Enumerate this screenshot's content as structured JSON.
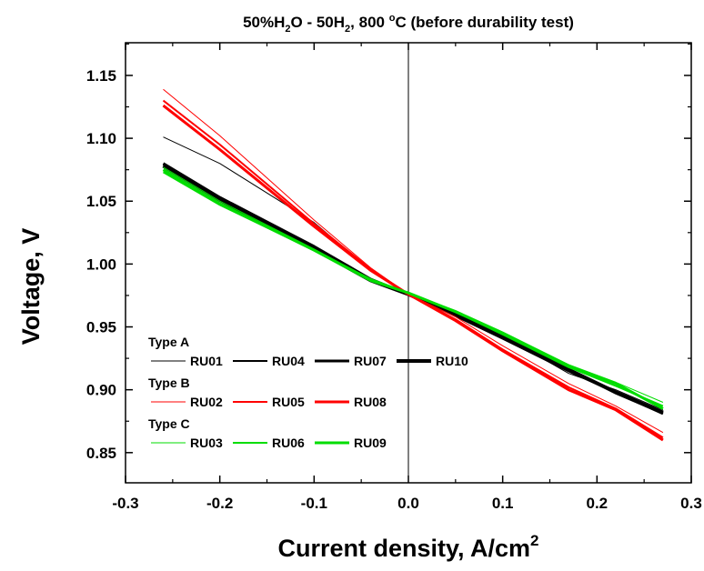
{
  "chart_data": {
    "type": "line",
    "title_parts": {
      "a": "50%H",
      "a_sub": "2",
      "b": "O - 50H",
      "b_sub": "2",
      "c": ", 800 ",
      "c_sup": "o",
      "d": "C (before durability test)"
    },
    "xlabel_main": "Current density, A/cm",
    "xlabel_sup": "2",
    "ylabel": "Voltage, V",
    "xlim": [
      -0.3,
      0.3
    ],
    "ylim": [
      0.826,
      1.176
    ],
    "x_ticks": [
      -0.3,
      -0.2,
      -0.1,
      0.0,
      0.1,
      0.2,
      0.3
    ],
    "x_tick_labels": [
      "-0.3",
      "-0.2",
      "-0.1",
      "0.0",
      "0.1",
      "0.2",
      "0.3"
    ],
    "y_ticks": [
      0.85,
      0.9,
      0.95,
      1.0,
      1.05,
      1.1,
      1.15
    ],
    "y_tick_labels": [
      "0.85",
      "0.90",
      "0.95",
      "1.00",
      "1.05",
      "1.10",
      "1.15"
    ],
    "zero_line_x": 0.0,
    "grid": false,
    "legend_position": "bottom-left",
    "legend_groups": [
      {
        "label": "Type A",
        "items": [
          "RU01",
          "RU04",
          "RU07",
          "RU10"
        ]
      },
      {
        "label": "Type B",
        "items": [
          "RU02",
          "RU05",
          "RU08"
        ]
      },
      {
        "label": "Type C",
        "items": [
          "RU03",
          "RU06",
          "RU09"
        ]
      }
    ],
    "series": [
      {
        "name": "RU01",
        "group": "Type A",
        "color": "#000000",
        "width": 1,
        "x": [
          -0.26,
          -0.2,
          -0.1,
          -0.04,
          0.0,
          0.05,
          0.1,
          0.17,
          0.22,
          0.27
        ],
        "y": [
          1.101,
          1.08,
          1.033,
          0.995,
          0.976,
          0.961,
          0.943,
          0.913,
          0.9,
          0.884
        ]
      },
      {
        "name": "RU04",
        "group": "Type A",
        "color": "#000000",
        "width": 2,
        "x": [
          -0.26,
          -0.2,
          -0.1,
          -0.04,
          0.0,
          0.05,
          0.1,
          0.17,
          0.22,
          0.27
        ],
        "y": [
          1.079,
          1.052,
          1.013,
          0.988,
          0.976,
          0.96,
          0.942,
          0.916,
          0.897,
          0.881
        ]
      },
      {
        "name": "RU07",
        "group": "Type A",
        "color": "#000000",
        "width": 3,
        "x": [
          -0.26,
          -0.2,
          -0.1,
          -0.04,
          0.0,
          0.05,
          0.1,
          0.17,
          0.22,
          0.27
        ],
        "y": [
          1.08,
          1.053,
          1.014,
          0.988,
          0.976,
          0.959,
          0.941,
          0.915,
          0.898,
          0.881
        ]
      },
      {
        "name": "RU10",
        "group": "Type A",
        "color": "#000000",
        "width": 4,
        "x": [
          -0.26,
          -0.2,
          -0.1,
          -0.04,
          0.0,
          0.05,
          0.1,
          0.17,
          0.22,
          0.27
        ],
        "y": [
          1.078,
          1.051,
          1.012,
          0.987,
          0.976,
          0.96,
          0.942,
          0.916,
          0.898,
          0.882
        ]
      },
      {
        "name": "RU02",
        "group": "Type B",
        "color": "#ff0000",
        "width": 1,
        "x": [
          -0.26,
          -0.2,
          -0.1,
          -0.04,
          0.0,
          0.05,
          0.1,
          0.17,
          0.22,
          0.27
        ],
        "y": [
          1.139,
          1.102,
          1.035,
          0.997,
          0.976,
          0.958,
          0.935,
          0.905,
          0.887,
          0.866
        ]
      },
      {
        "name": "RU05",
        "group": "Type B",
        "color": "#ff0000",
        "width": 2,
        "x": [
          -0.26,
          -0.2,
          -0.1,
          -0.04,
          0.0,
          0.05,
          0.1,
          0.17,
          0.22,
          0.27
        ],
        "y": [
          1.13,
          1.095,
          1.032,
          0.996,
          0.976,
          0.956,
          0.932,
          0.902,
          0.885,
          0.862
        ]
      },
      {
        "name": "RU08",
        "group": "Type B",
        "color": "#ff0000",
        "width": 3,
        "x": [
          -0.26,
          -0.2,
          -0.1,
          -0.04,
          0.0,
          0.05,
          0.1,
          0.17,
          0.22,
          0.27
        ],
        "y": [
          1.126,
          1.091,
          1.03,
          0.995,
          0.976,
          0.955,
          0.931,
          0.9,
          0.884,
          0.86
        ]
      },
      {
        "name": "RU03",
        "group": "Type C",
        "color": "#00dd00",
        "width": 1,
        "x": [
          -0.26,
          -0.2,
          -0.1,
          -0.04,
          0.0,
          0.05,
          0.1,
          0.17,
          0.22,
          0.27
        ],
        "y": [
          1.077,
          1.05,
          1.012,
          0.988,
          0.977,
          0.963,
          0.946,
          0.92,
          0.906,
          0.89
        ]
      },
      {
        "name": "RU06",
        "group": "Type C",
        "color": "#00dd00",
        "width": 2,
        "x": [
          -0.26,
          -0.2,
          -0.1,
          -0.04,
          0.0,
          0.05,
          0.1,
          0.17,
          0.22,
          0.27
        ],
        "y": [
          1.073,
          1.047,
          1.011,
          0.988,
          0.977,
          0.962,
          0.944,
          0.918,
          0.903,
          0.887
        ]
      },
      {
        "name": "RU09",
        "group": "Type C",
        "color": "#00dd00",
        "width": 3,
        "x": [
          -0.26,
          -0.2,
          -0.1,
          -0.04,
          0.0,
          0.05,
          0.1,
          0.17,
          0.22,
          0.27
        ],
        "y": [
          1.075,
          1.048,
          1.011,
          0.987,
          0.977,
          0.962,
          0.945,
          0.919,
          0.905,
          0.885
        ]
      }
    ]
  }
}
